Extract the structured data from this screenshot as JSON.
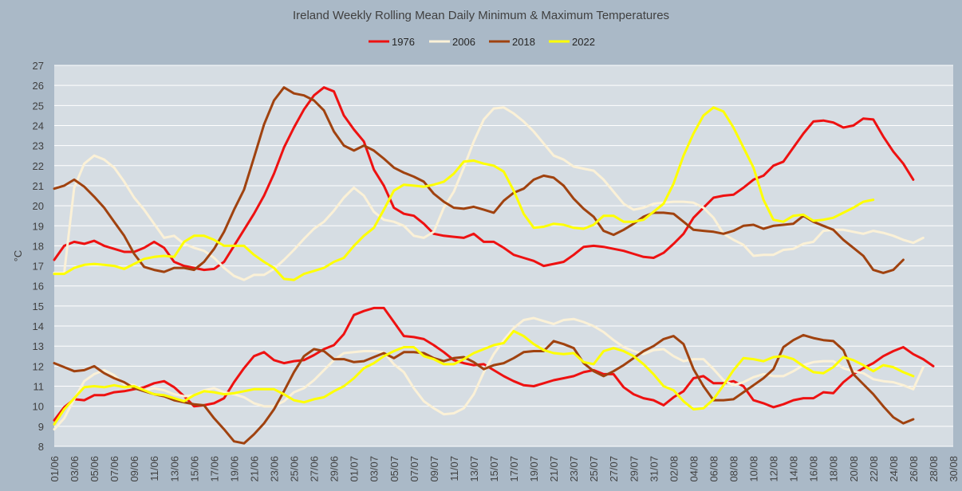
{
  "chart_data": {
    "type": "line",
    "title": "Ireland Weekly Rolling Mean Daily Minimum & Maximum Temperatures",
    "xlabel": "",
    "ylabel": "°C",
    "ylim": [
      8,
      27
    ],
    "yticks": [
      8,
      9,
      10,
      11,
      12,
      13,
      14,
      15,
      16,
      17,
      18,
      19,
      20,
      21,
      22,
      23,
      24,
      25,
      26,
      27
    ],
    "x_tick_labels": [
      "01/06",
      "03/06",
      "05/06",
      "07/06",
      "09/06",
      "11/06",
      "13/06",
      "15/06",
      "17/06",
      "19/06",
      "21/06",
      "23/06",
      "25/06",
      "27/06",
      "29/06",
      "01/07",
      "03/07",
      "05/07",
      "07/07",
      "09/07",
      "11/07",
      "13/07",
      "15/07",
      "17/07",
      "19/07",
      "21/07",
      "23/07",
      "25/07",
      "27/07",
      "29/07",
      "31/07",
      "02/08",
      "04/08",
      "06/08",
      "08/08",
      "10/08",
      "12/08",
      "14/08",
      "16/08",
      "18/08",
      "20/08",
      "22/08",
      "24/08",
      "26/08",
      "28/08",
      "30/08"
    ],
    "grid": "horizontal",
    "legend": "top",
    "background": "#d6dde3",
    "series": [
      {
        "name": "1976",
        "color": "#ee1111",
        "max": [
          17.3,
          18.0,
          18.2,
          18.1,
          18.25,
          18.0,
          17.85,
          17.7,
          17.7,
          17.9,
          18.2,
          17.9,
          17.2,
          17.0,
          16.9,
          16.8,
          16.85,
          17.2,
          18.0,
          18.8,
          19.6,
          20.5,
          21.6,
          22.9,
          23.9,
          24.8,
          25.5,
          25.9,
          25.7,
          24.5,
          23.8,
          23.2,
          21.8,
          21.0,
          19.9,
          19.6,
          19.5,
          19.1,
          18.6,
          18.5,
          18.45,
          18.4,
          18.6,
          18.2,
          18.2,
          17.9,
          17.55,
          17.4,
          17.25,
          17.0,
          17.1,
          17.2,
          17.55,
          17.95,
          18.0,
          17.95,
          17.85,
          17.75,
          17.6,
          17.45,
          17.4,
          17.65,
          18.1,
          18.6,
          19.4,
          19.9,
          20.4,
          20.5,
          20.55,
          20.9,
          21.3,
          21.5,
          22.0,
          22.2,
          22.9,
          23.6,
          24.2,
          24.25,
          24.15,
          23.9,
          24.0,
          24.35,
          24.3,
          23.45,
          22.7,
          22.1,
          21.3
        ],
        "min": [
          9.3,
          9.95,
          10.35,
          10.3,
          10.55,
          10.55,
          10.7,
          10.75,
          10.85,
          10.95,
          11.15,
          11.25,
          10.95,
          10.5,
          10.0,
          10.05,
          10.15,
          10.4,
          11.2,
          11.9,
          12.5,
          12.7,
          12.3,
          12.15,
          12.25,
          12.3,
          12.55,
          12.85,
          13.05,
          13.6,
          14.55,
          14.75,
          14.9,
          14.9,
          14.2,
          13.5,
          13.45,
          13.35,
          13.05,
          12.7,
          12.3,
          12.15,
          12.05,
          12.1,
          11.8,
          11.5,
          11.25,
          11.05,
          11.0,
          11.15,
          11.3,
          11.4,
          11.5,
          11.7,
          11.8,
          11.6,
          11.6,
          10.95,
          10.6,
          10.4,
          10.3,
          10.05,
          10.45,
          10.75,
          11.4,
          11.5,
          11.15,
          11.15,
          11.25,
          11.0,
          10.3,
          10.15,
          9.95,
          10.1,
          10.3,
          10.4,
          10.4,
          10.7,
          10.65,
          11.2,
          11.6,
          11.9,
          12.15,
          12.5,
          12.75,
          12.95,
          12.6,
          12.35,
          12.0
        ]
      },
      {
        "name": "2006",
        "color": "#fbf1d7",
        "max": [
          16.65,
          16.65,
          20.9,
          22.1,
          22.5,
          22.3,
          21.9,
          21.2,
          20.4,
          19.8,
          19.1,
          18.4,
          18.5,
          18.1,
          17.9,
          17.75,
          17.4,
          16.9,
          16.5,
          16.3,
          16.55,
          16.55,
          16.85,
          17.3,
          17.8,
          18.35,
          18.85,
          19.2,
          19.75,
          20.4,
          20.9,
          20.5,
          19.7,
          19.3,
          19.2,
          19.0,
          18.5,
          18.4,
          18.7,
          19.9,
          20.7,
          21.9,
          23.2,
          24.3,
          24.85,
          24.9,
          24.6,
          24.2,
          23.7,
          23.1,
          22.5,
          22.3,
          21.95,
          21.85,
          21.75,
          21.3,
          20.7,
          20.1,
          19.8,
          19.9,
          20.1,
          20.15,
          20.2,
          20.2,
          20.15,
          19.9,
          19.4,
          18.6,
          18.3,
          18.05,
          17.5,
          17.55,
          17.55,
          17.8,
          17.85,
          18.1,
          18.2,
          18.75,
          18.8,
          18.8,
          18.7,
          18.6,
          18.75,
          18.65,
          18.5,
          18.3,
          18.15,
          18.4
        ],
        "min": [
          8.85,
          9.4,
          10.35,
          11.25,
          11.6,
          11.8,
          11.55,
          11.1,
          11.05,
          10.8,
          10.9,
          10.8,
          10.6,
          10.5,
          10.55,
          10.8,
          10.9,
          10.7,
          10.6,
          10.45,
          10.15,
          10.0,
          10.0,
          10.25,
          10.7,
          10.9,
          11.3,
          11.8,
          12.3,
          12.65,
          12.7,
          12.75,
          12.75,
          12.7,
          12.1,
          11.7,
          10.9,
          10.25,
          9.9,
          9.6,
          9.65,
          9.9,
          10.6,
          11.7,
          12.6,
          13.3,
          13.9,
          14.3,
          14.4,
          14.25,
          14.1,
          14.3,
          14.35,
          14.2,
          14.0,
          13.7,
          13.3,
          12.95,
          12.75,
          12.6,
          12.8,
          12.85,
          12.5,
          12.25,
          12.35,
          12.35,
          11.85,
          11.3,
          11.05,
          11.2,
          11.45,
          11.6,
          11.5,
          11.5,
          11.75,
          12.05,
          12.2,
          12.25,
          12.25,
          11.9,
          11.75,
          11.65,
          11.35,
          11.25,
          11.2,
          11.05,
          10.85,
          11.95
        ]
      },
      {
        "name": "2018",
        "color": "#a0420f",
        "max": [
          20.85,
          21.0,
          21.3,
          20.95,
          20.45,
          19.9,
          19.2,
          18.5,
          17.6,
          16.95,
          16.8,
          16.7,
          16.9,
          16.9,
          16.8,
          17.2,
          17.85,
          18.7,
          19.8,
          20.8,
          22.4,
          24.05,
          25.25,
          25.9,
          25.6,
          25.5,
          25.25,
          24.75,
          23.7,
          23.0,
          22.75,
          23.0,
          22.75,
          22.35,
          21.9,
          21.65,
          21.45,
          21.2,
          20.6,
          20.2,
          19.9,
          19.85,
          19.95,
          19.8,
          19.65,
          20.25,
          20.65,
          20.85,
          21.3,
          21.5,
          21.4,
          21.0,
          20.35,
          19.85,
          19.45,
          18.75,
          18.55,
          18.8,
          19.1,
          19.45,
          19.65,
          19.65,
          19.6,
          19.2,
          18.8,
          18.75,
          18.7,
          18.6,
          18.75,
          19.0,
          19.05,
          18.85,
          19.0,
          19.05,
          19.1,
          19.5,
          19.2,
          19.0,
          18.8,
          18.3,
          17.9,
          17.5,
          16.8,
          16.65,
          16.8,
          17.3
        ],
        "min": [
          12.15,
          11.95,
          11.75,
          11.8,
          12.0,
          11.65,
          11.4,
          11.2,
          10.9,
          10.75,
          10.6,
          10.5,
          10.3,
          10.2,
          10.1,
          10.05,
          9.4,
          8.85,
          8.25,
          8.15,
          8.6,
          9.15,
          9.85,
          10.75,
          11.7,
          12.5,
          12.85,
          12.75,
          12.35,
          12.35,
          12.2,
          12.25,
          12.45,
          12.65,
          12.4,
          12.7,
          12.7,
          12.65,
          12.4,
          12.25,
          12.4,
          12.45,
          12.2,
          11.85,
          12.05,
          12.15,
          12.4,
          12.7,
          12.75,
          12.75,
          13.25,
          13.1,
          12.9,
          12.15,
          11.75,
          11.5,
          11.75,
          12.05,
          12.4,
          12.75,
          13.0,
          13.35,
          13.5,
          13.1,
          11.85,
          11.0,
          10.3,
          10.3,
          10.35,
          10.7,
          11.05,
          11.4,
          11.85,
          12.95,
          13.3,
          13.55,
          13.4,
          13.3,
          13.25,
          12.8,
          11.6,
          11.1,
          10.6,
          10.0,
          9.45,
          9.15,
          9.35
        ]
      },
      {
        "name": "2022",
        "color": "#ffff00",
        "max": [
          16.6,
          16.6,
          16.9,
          17.05,
          17.1,
          17.05,
          17.0,
          16.85,
          17.1,
          17.35,
          17.45,
          17.5,
          17.45,
          18.2,
          18.5,
          18.5,
          18.3,
          18.0,
          18.0,
          18.0,
          17.55,
          17.2,
          16.9,
          16.35,
          16.3,
          16.6,
          16.75,
          16.9,
          17.2,
          17.4,
          18.0,
          18.5,
          18.9,
          19.8,
          20.75,
          21.05,
          21.0,
          20.95,
          21.05,
          21.2,
          21.6,
          22.2,
          22.25,
          22.1,
          22.0,
          21.7,
          20.75,
          19.6,
          18.9,
          18.95,
          19.1,
          19.05,
          18.9,
          18.85,
          19.05,
          19.5,
          19.5,
          19.2,
          19.2,
          19.3,
          19.7,
          20.1,
          21.1,
          22.5,
          23.6,
          24.5,
          24.9,
          24.7,
          23.9,
          22.9,
          21.9,
          20.3,
          19.3,
          19.2,
          19.5,
          19.55,
          19.25,
          19.3,
          19.4,
          19.65,
          19.9,
          20.2,
          20.3
        ],
        "min": [
          9.1,
          9.85,
          10.4,
          10.95,
          11.0,
          10.95,
          11.05,
          10.95,
          11.0,
          10.8,
          10.6,
          10.55,
          10.4,
          10.25,
          10.55,
          10.75,
          10.7,
          10.6,
          10.65,
          10.75,
          10.85,
          10.85,
          10.85,
          10.6,
          10.3,
          10.2,
          10.35,
          10.45,
          10.75,
          11.0,
          11.4,
          11.9,
          12.15,
          12.5,
          12.75,
          12.95,
          12.95,
          12.5,
          12.35,
          12.1,
          12.1,
          12.35,
          12.65,
          12.85,
          13.05,
          13.15,
          13.75,
          13.5,
          13.1,
          12.8,
          12.65,
          12.6,
          12.65,
          12.2,
          12.1,
          12.75,
          12.9,
          12.75,
          12.5,
          12.1,
          11.6,
          11.0,
          10.8,
          10.25,
          9.85,
          9.9,
          10.35,
          11.05,
          11.8,
          12.4,
          12.35,
          12.25,
          12.45,
          12.5,
          12.35,
          12.0,
          11.7,
          11.65,
          11.95,
          12.45,
          12.3,
          12.05,
          11.75,
          12.05,
          11.95,
          11.7,
          11.5
        ]
      }
    ]
  }
}
